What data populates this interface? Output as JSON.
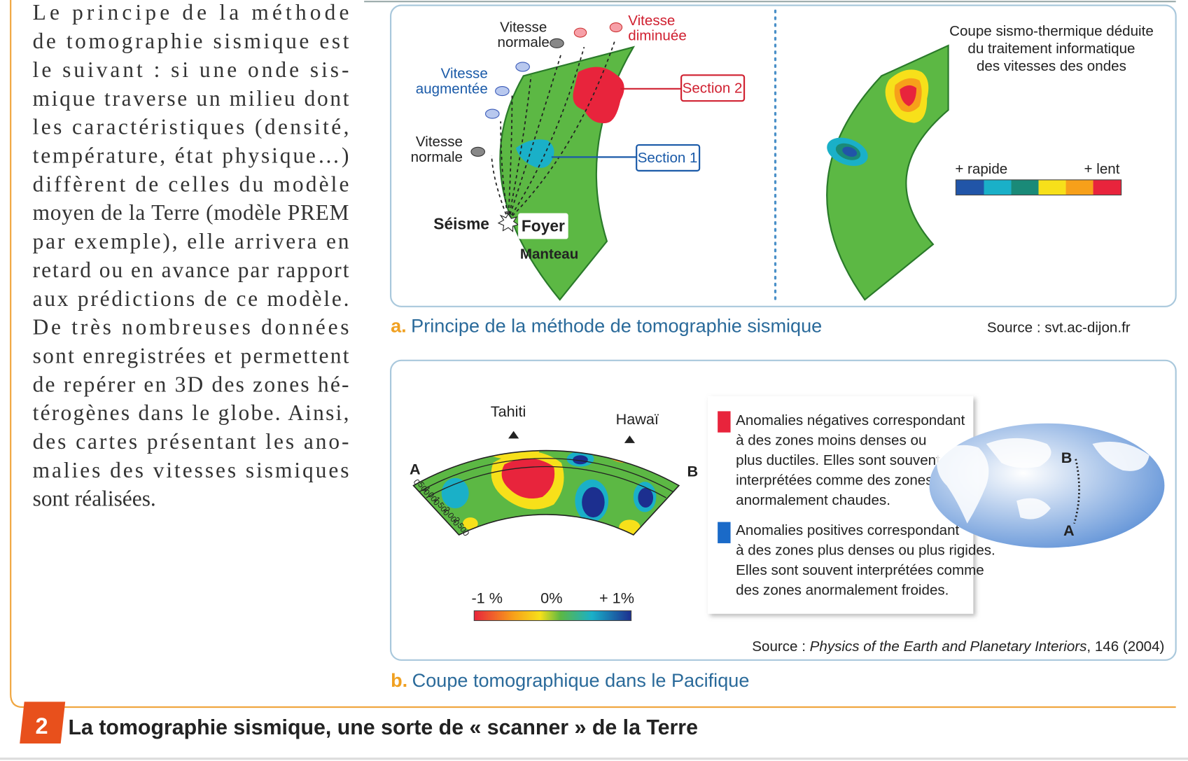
{
  "text": {
    "lines": [
      "Le principe de la méthode",
      "de tomographie sismique est",
      "le suivant : si une onde sis-",
      "mique traverse un milieu dont",
      "les caractéristiques (densité,",
      "température, état physique…)",
      "diffèrent de celles du modèle",
      "moyen de la Terre (modèle PREM",
      "par exemple), elle arrivera en",
      "retard ou en avance par rapport",
      "aux prédictions de ce modèle.",
      "De très nombreuses données",
      "sont enregistrées et permettent",
      "de repérer en 3D des zones hé-",
      "térogènes dans le globe. Ainsi,",
      "des cartes présentant les ano-",
      "malies des vitesses sismiques",
      "sont réalisées."
    ]
  },
  "figure_a": {
    "vitesse_normale_top": [
      "Vitesse",
      "normale"
    ],
    "vitesse_diminuee": [
      "Vitesse",
      "diminuée"
    ],
    "vitesse_augmentee": [
      "Vitesse",
      "augmentée"
    ],
    "vitesse_normale_left": [
      "Vitesse",
      "normale"
    ],
    "section_2": "Section 2",
    "section_1": "Section 1",
    "seisme": "Séisme",
    "foyer": "Foyer",
    "manteau": "Manteau",
    "coupe_title": [
      "Coupe sismo-thermique déduite",
      "du traitement informatique",
      "des vitesses des ondes"
    ],
    "scale_left": "+ rapide",
    "scale_right": "+ lent",
    "caption_letter": "a.",
    "caption": "Principe de la méthode de tomographie sismique",
    "source": "Source : svt.ac-dijon.fr"
  },
  "figure_b": {
    "tahiti": "Tahiti",
    "hawai": "Hawaï",
    "point_a": "A",
    "point_b": "B",
    "depths": [
      "0",
      "500",
      "1 000",
      "1 500",
      "2 000",
      "2 500"
    ],
    "scale_labels": [
      "-1 %",
      "0%",
      "+ 1%"
    ],
    "legend_negative": [
      "Anomalies négatives correspondant",
      "à des zones moins denses ou",
      "plus ductiles. Elles sont souvent",
      "interprétées comme des zones",
      "anormalement chaudes."
    ],
    "legend_positive": [
      "Anomalies positives correspondant",
      "à des zones plus denses ou plus rigides.",
      "Elles sont souvent interprétées comme",
      "des zones anormalement froides."
    ],
    "globe_b": "B",
    "globe_a": "A",
    "source_prefix": "Source : ",
    "source_journal": "Physics of the Earth and Planetary Interiors",
    "source_suffix": ", 146 (2004)",
    "caption_letter": "b.",
    "caption": "Coupe tomographique dans le Pacifique"
  },
  "document_title": {
    "number": "2",
    "text": "La tomographie sismique, une sorte de « scanner » de la Terre"
  }
}
